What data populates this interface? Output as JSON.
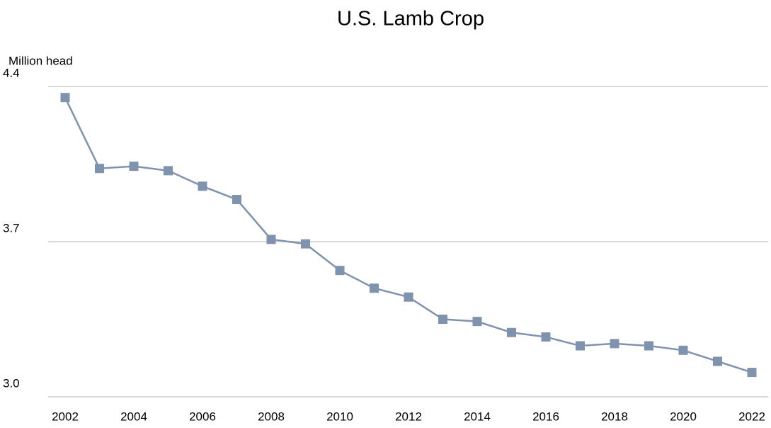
{
  "chart_data": {
    "type": "line",
    "title": "U.S. Lamb Crop",
    "y_label": "Million head",
    "x": [
      2002,
      2003,
      2004,
      2005,
      2006,
      2007,
      2008,
      2009,
      2010,
      2011,
      2012,
      2013,
      2014,
      2015,
      2016,
      2017,
      2018,
      2019,
      2020,
      2021,
      2022
    ],
    "values": [
      4.35,
      4.03,
      4.04,
      4.02,
      3.95,
      3.89,
      3.71,
      3.69,
      3.57,
      3.49,
      3.45,
      3.35,
      3.34,
      3.29,
      3.27,
      3.23,
      3.24,
      3.23,
      3.21,
      3.16,
      3.11
    ],
    "color": "#7f93ae",
    "xlim": [
      2002,
      2022
    ],
    "xticks": [
      2002,
      2004,
      2006,
      2008,
      2010,
      2012,
      2014,
      2016,
      2018,
      2020,
      2022
    ],
    "ylim": [
      3.0,
      4.4
    ],
    "yticks": [
      {
        "value": 3.0,
        "label": "3.0"
      },
      3.7,
      4.4
    ],
    "grid": true
  }
}
